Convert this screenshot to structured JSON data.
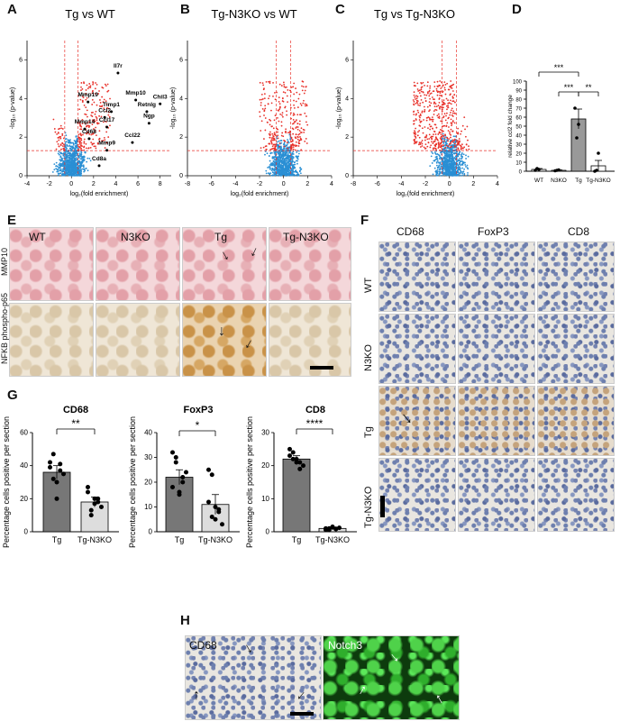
{
  "panel_letters": {
    "A": "A",
    "B": "B",
    "C": "C",
    "D": "D",
    "E": "E",
    "F": "F",
    "G": "G",
    "H": "H"
  },
  "volcano": {
    "xlabel": "log₂(fold enrichment)",
    "ylabel": "-log₁₀ (p-value)",
    "A": {
      "title": "Tg vs WT",
      "xticks": [
        "-4",
        "-2",
        "0",
        "2",
        "4",
        "6",
        "8"
      ],
      "yticks": [
        "0",
        "2",
        "4",
        "6"
      ],
      "genes": [
        "Il7r",
        "Mmp19",
        "Mmp10",
        "Chil3",
        "Retnlg",
        "Timp1",
        "Ccl2",
        "Ngp",
        "Ccl17",
        "Mmp14",
        "Cd68",
        "Ccl22",
        "Mmp9",
        "Cd8a"
      ]
    },
    "B": {
      "title": "Tg-N3KO vs WT",
      "xticks": [
        "-8",
        "-6",
        "-4",
        "-2",
        "0",
        "2",
        "4"
      ],
      "yticks": [
        "0",
        "2",
        "4",
        "6"
      ]
    },
    "C": {
      "title": "Tg vs Tg-N3KO",
      "xticks": [
        "-8",
        "-6",
        "-4",
        "-2",
        "0",
        "2",
        "4"
      ],
      "yticks": [
        "0",
        "2",
        "4",
        "6"
      ]
    }
  },
  "panelE": {
    "columns": [
      "WT",
      "N3KO",
      "Tg",
      "Tg-N3KO"
    ],
    "rows": [
      "MMP10",
      "NFKB phospho-p65"
    ]
  },
  "panelF": {
    "columns": [
      "CD68",
      "FoxP3",
      "CD8"
    ],
    "rows": [
      "WT",
      "N3KO",
      "Tg",
      "Tg-N3KO"
    ]
  },
  "panelH": {
    "left": "CD68",
    "right": "Notch3"
  },
  "chart_data": [
    {
      "type": "bar",
      "panel": "D",
      "categories": [
        "WT",
        "N3KO",
        "Tg",
        "Tg-N3KO"
      ],
      "values": [
        2,
        1,
        58,
        6
      ],
      "errors": [
        1,
        0.5,
        11,
        6
      ],
      "points": [
        [
          1,
          3,
          2
        ],
        [
          0.5,
          1,
          1.5
        ],
        [
          70,
          37,
          52
        ],
        [
          0,
          1,
          20
        ]
      ],
      "ylabel": "relative ccl2 fold change",
      "ylim": [
        0,
        100
      ],
      "yticks": [
        "0",
        "10",
        "20",
        "30",
        "40",
        "50",
        "60",
        "70",
        "80",
        "90",
        "100"
      ],
      "significance": [
        {
          "pair": [
            "WT",
            "Tg"
          ],
          "label": "***"
        },
        {
          "pair": [
            "N3KO",
            "Tg"
          ],
          "label": "***"
        },
        {
          "pair": [
            "Tg",
            "Tg-N3KO"
          ],
          "label": "**"
        }
      ]
    },
    {
      "type": "bar",
      "panel": "G1",
      "title": "CD68",
      "categories": [
        "Tg",
        "Tg-N3KO"
      ],
      "values": [
        36,
        18
      ],
      "errors": [
        4,
        3
      ],
      "points": [
        [
          42,
          47,
          30,
          37,
          35,
          39,
          32,
          20,
          41
        ],
        [
          24,
          13,
          20,
          18,
          15,
          27,
          10,
          17,
          20
        ]
      ],
      "ylabel": "Percentage cells positive per section",
      "ylim": [
        0,
        60
      ],
      "yticks": [
        "0",
        "20",
        "40",
        "60"
      ],
      "significance": "**"
    },
    {
      "type": "bar",
      "panel": "G2",
      "title": "FoxP3",
      "categories": [
        "Tg",
        "Tg-N3KO"
      ],
      "values": [
        22,
        11
      ],
      "errors": [
        3,
        4
      ],
      "points": [
        [
          32,
          28,
          15,
          20,
          24,
          18,
          30,
          16,
          22
        ],
        [
          25,
          23,
          5,
          8,
          3,
          12,
          6,
          10,
          9
        ]
      ],
      "ylabel": "Percentage cells positive per section",
      "ylim": [
        0,
        40
      ],
      "yticks": [
        "0",
        "10",
        "20",
        "30",
        "40"
      ],
      "significance": "*"
    },
    {
      "type": "bar",
      "panel": "G3",
      "title": "CD8",
      "categories": [
        "Tg",
        "Tg-N3KO"
      ],
      "values": [
        22,
        1
      ],
      "errors": [
        1,
        0.3
      ],
      "points": [
        [
          25,
          24,
          22,
          21,
          20,
          23,
          22,
          21,
          19
        ],
        [
          1,
          0.5,
          1.5,
          0.8,
          1.2,
          0.6,
          1,
          1.3,
          0.9
        ]
      ],
      "ylabel": "Percentage cells positive per section",
      "ylim": [
        0,
        30
      ],
      "yticks": [
        "0",
        "10",
        "20",
        "30"
      ],
      "significance": "****"
    }
  ]
}
